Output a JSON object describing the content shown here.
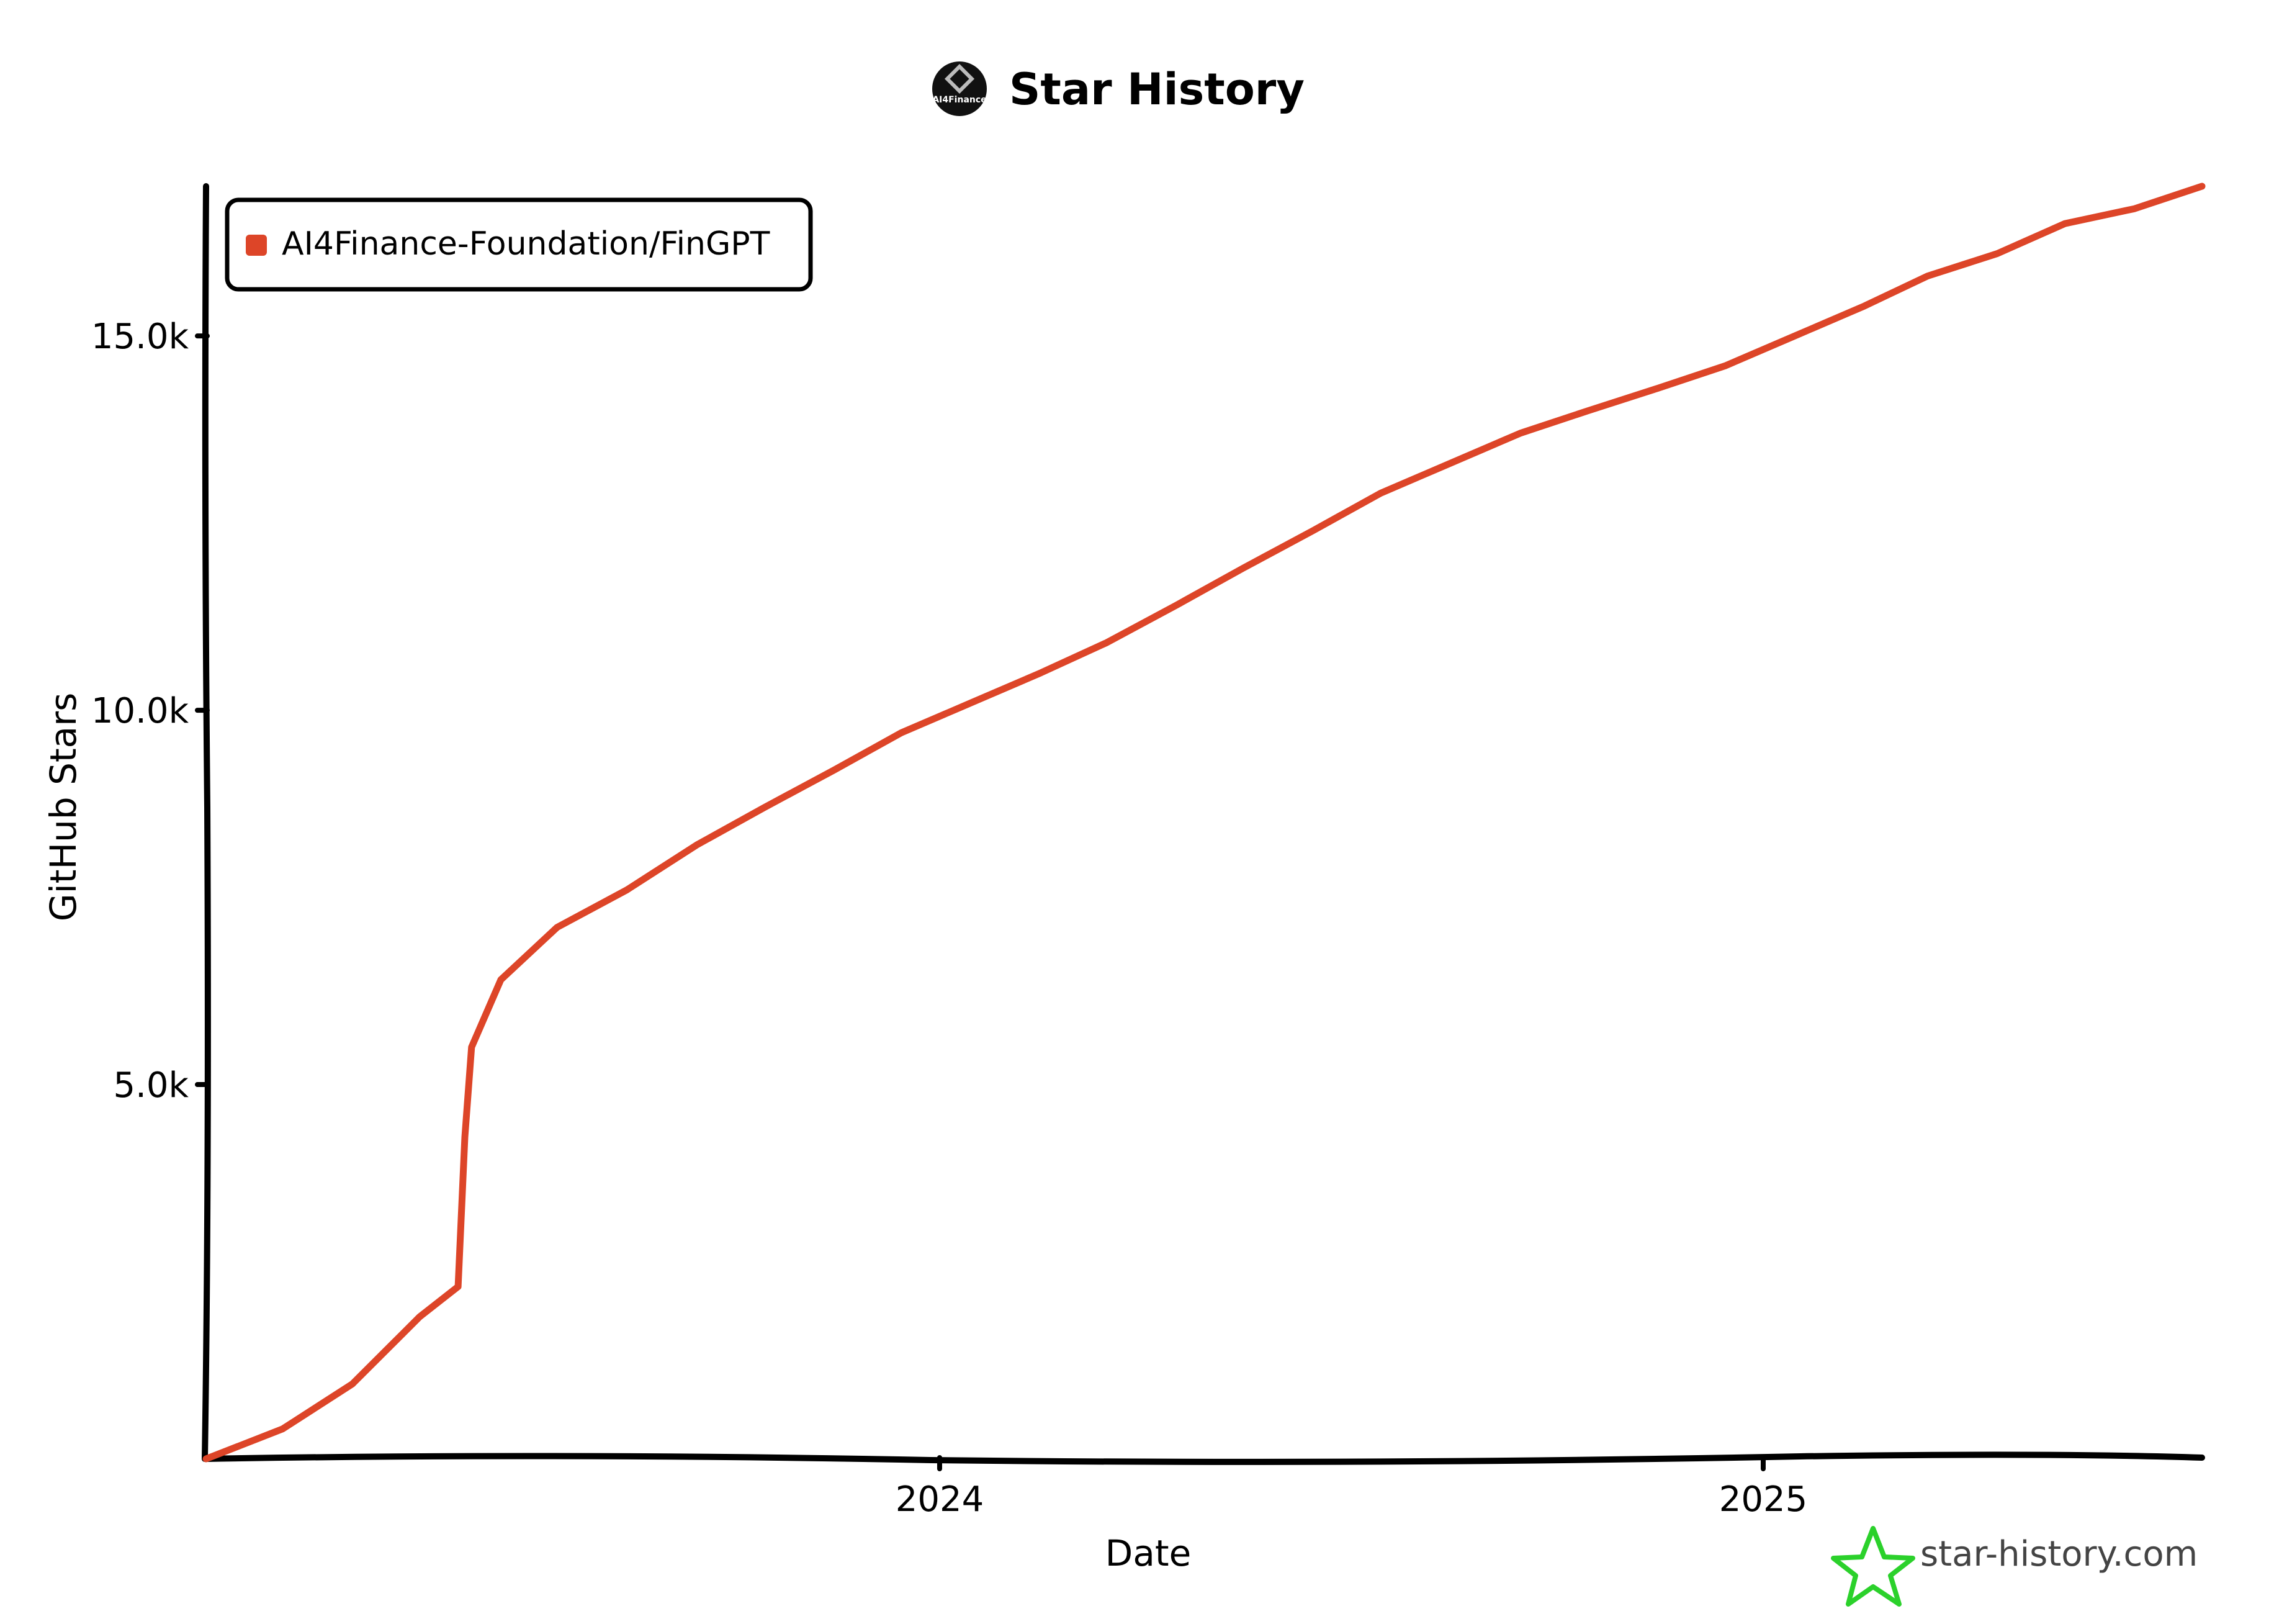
{
  "header": {
    "title": "Star History",
    "logo_text": "AI4Finance"
  },
  "watermark": {
    "text": "star-history.com",
    "icon": "star-outline-icon",
    "icon_color": "#2bd12b"
  },
  "chart_data": {
    "type": "line",
    "title": "Star History",
    "xlabel": "Date",
    "ylabel": "GitHub Stars",
    "x_ticks": [
      {
        "label": "2024",
        "value": "2024-01-01"
      },
      {
        "label": "2025",
        "value": "2025-01-01"
      }
    ],
    "y_ticks": [
      {
        "label": "5.0k",
        "value": 5000
      },
      {
        "label": "10.0k",
        "value": 10000
      },
      {
        "label": "15.0k",
        "value": 15000
      }
    ],
    "xlim": [
      "2023-02-09",
      "2025-07-15"
    ],
    "ylim": [
      0,
      17000
    ],
    "grid": false,
    "legend": {
      "placement": "top-left"
    },
    "series": [
      {
        "name": "AI4Finance-Foundation/FinGPT",
        "color": "#dd4528",
        "points": [
          {
            "x": "2023-02-09",
            "y": 0
          },
          {
            "x": "2023-03-15",
            "y": 400
          },
          {
            "x": "2023-04-15",
            "y": 1000
          },
          {
            "x": "2023-05-15",
            "y": 1900
          },
          {
            "x": "2023-06-01",
            "y": 2300
          },
          {
            "x": "2023-06-04",
            "y": 4300
          },
          {
            "x": "2023-06-07",
            "y": 5500
          },
          {
            "x": "2023-06-20",
            "y": 6400
          },
          {
            "x": "2023-07-15",
            "y": 7100
          },
          {
            "x": "2023-08-15",
            "y": 7600
          },
          {
            "x": "2023-09-15",
            "y": 8200
          },
          {
            "x": "2023-10-15",
            "y": 8700
          },
          {
            "x": "2023-11-15",
            "y": 9200
          },
          {
            "x": "2023-12-15",
            "y": 9700
          },
          {
            "x": "2024-01-15",
            "y": 10100
          },
          {
            "x": "2024-02-15",
            "y": 10500
          },
          {
            "x": "2024-03-15",
            "y": 10900
          },
          {
            "x": "2024-04-15",
            "y": 11400
          },
          {
            "x": "2024-05-15",
            "y": 11900
          },
          {
            "x": "2024-06-15",
            "y": 12400
          },
          {
            "x": "2024-07-15",
            "y": 12900
          },
          {
            "x": "2024-08-15",
            "y": 13300
          },
          {
            "x": "2024-09-15",
            "y": 13700
          },
          {
            "x": "2024-10-15",
            "y": 14000
          },
          {
            "x": "2024-11-15",
            "y": 14300
          },
          {
            "x": "2024-12-15",
            "y": 14600
          },
          {
            "x": "2025-01-15",
            "y": 15000
          },
          {
            "x": "2025-02-15",
            "y": 15400
          },
          {
            "x": "2025-03-15",
            "y": 15800
          },
          {
            "x": "2025-04-15",
            "y": 16100
          },
          {
            "x": "2025-05-15",
            "y": 16500
          },
          {
            "x": "2025-06-15",
            "y": 16700
          },
          {
            "x": "2025-07-15",
            "y": 17000
          }
        ]
      }
    ]
  }
}
